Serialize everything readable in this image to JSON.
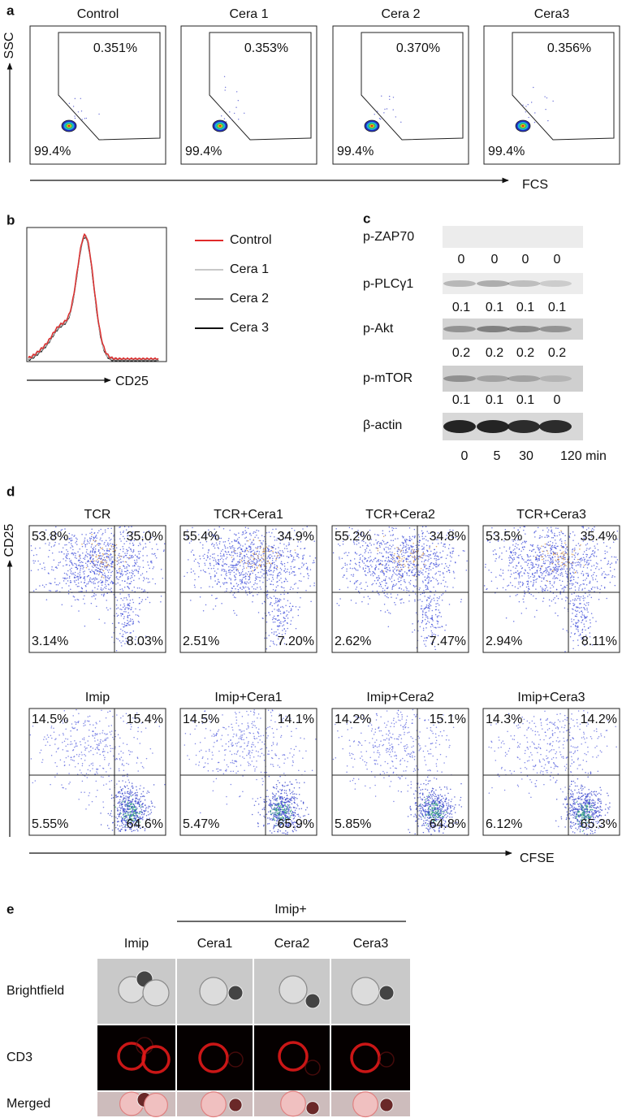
{
  "panel_a": {
    "label": "a",
    "y_axis": "SSC",
    "x_axis": "FCS",
    "plots": [
      {
        "title": "Control",
        "gate_upper": "0.351%",
        "gate_lower": "99.4%"
      },
      {
        "title": "Cera 1",
        "gate_upper": "0.353%",
        "gate_lower": "99.4%"
      },
      {
        "title": "Cera 2",
        "gate_upper": "0.370%",
        "gate_lower": "99.4%"
      },
      {
        "title": "Cera3",
        "gate_upper": "0.356%",
        "gate_lower": "99.4%"
      }
    ]
  },
  "panel_b": {
    "label": "b",
    "x_axis": "CD25",
    "legend": [
      {
        "name": "Control",
        "color": "#e02a2a"
      },
      {
        "name": "Cera 1",
        "color": "#c8c8c8"
      },
      {
        "name": "Cera 2",
        "color": "#777777"
      },
      {
        "name": "Cera 3",
        "color": "#111111"
      }
    ]
  },
  "panel_c": {
    "label": "c",
    "blots": [
      {
        "name": "p-ZAP70",
        "values": [
          0,
          0,
          0,
          0
        ]
      },
      {
        "name": "p-PLCγ1",
        "values": [
          0.1,
          0.1,
          0.1,
          0.1
        ]
      },
      {
        "name": "p-Akt",
        "values": [
          0.2,
          0.2,
          0.2,
          0.2
        ]
      },
      {
        "name": "p-mTOR",
        "values": [
          0.1,
          0.1,
          0.1,
          0
        ]
      },
      {
        "name": "β-actin"
      }
    ],
    "timepoints": [
      "0",
      "5",
      "30",
      "120 min"
    ]
  },
  "panel_d": {
    "label": "d",
    "y_axis": "CD25",
    "x_axis": "CFSE",
    "plots": [
      {
        "title": "TCR",
        "quadrants": [
          "53.8%",
          "35.0%",
          "3.14%",
          "8.03%"
        ]
      },
      {
        "title": "TCR+Cera1",
        "quadrants": [
          "55.4%",
          "34.9%",
          "2.51%",
          "7.20%"
        ]
      },
      {
        "title": "TCR+Cera2",
        "quadrants": [
          "55.2%",
          "34.8%",
          "2.62%",
          "7.47%"
        ]
      },
      {
        "title": "TCR+Cera3",
        "quadrants": [
          "53.5%",
          "35.4%",
          "2.94%",
          "8.11%"
        ]
      },
      {
        "title": "Imip",
        "quadrants": [
          "14.5%",
          "15.4%",
          "5.55%",
          "64.6%"
        ]
      },
      {
        "title": "Imip+Cera1",
        "quadrants": [
          "14.5%",
          "14.1%",
          "5.47%",
          "65.9%"
        ]
      },
      {
        "title": "Imip+Cera2",
        "quadrants": [
          "14.2%",
          "15.1%",
          "5.85%",
          "64.8%"
        ]
      },
      {
        "title": "Imip+Cera3",
        "quadrants": [
          "14.3%",
          "14.2%",
          "6.12%",
          "65.3%"
        ]
      }
    ]
  },
  "panel_e": {
    "label": "e",
    "group": "Imip+",
    "columns": [
      "Imip",
      "Cera1",
      "Cera2",
      "Cera3"
    ],
    "rows": [
      "Brightfield",
      "CD3",
      "Merged"
    ]
  }
}
